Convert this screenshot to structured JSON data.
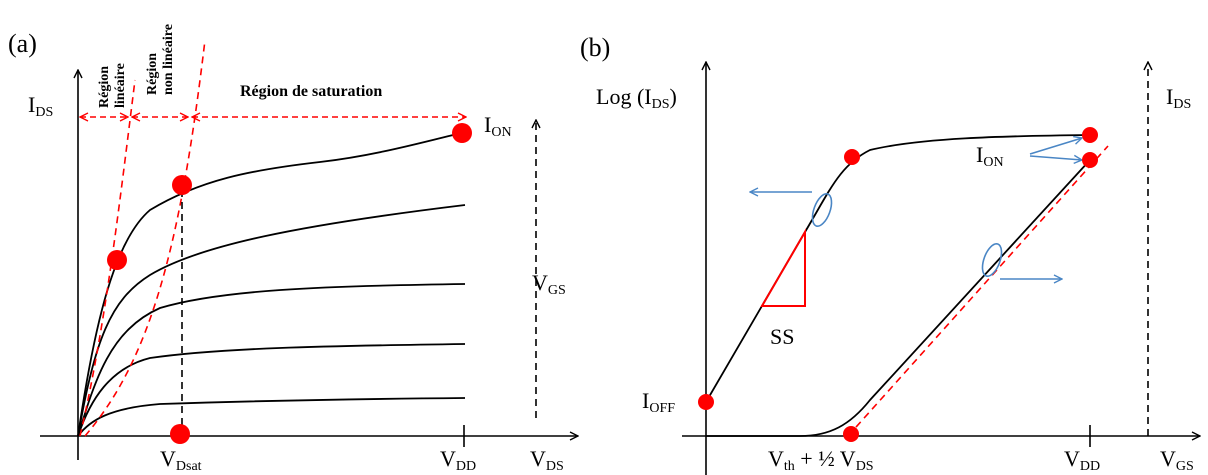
{
  "colors": {
    "curve": "#000000",
    "accent_red": "#ff0000",
    "arrow_blue": "#4a86c5"
  },
  "left_panel": {
    "label": "(a)",
    "y_axis": {
      "main": "I",
      "sub": "DS"
    },
    "x_axis": {
      "main": "V",
      "sub": "DS"
    },
    "vgs_label": {
      "main": "V",
      "sub": "GS"
    },
    "ion_label": {
      "main": "I",
      "sub": "ON"
    },
    "vdsat_label": {
      "main": "V",
      "sub": "Dsat"
    },
    "vdd_label": {
      "main": "V",
      "sub": "DD"
    },
    "regions": {
      "linear_line1": "Région",
      "linear_line2": "linéaire",
      "nonlinear_line1": "Région",
      "nonlinear_line2": "non linéaire",
      "saturation": "Région de saturation"
    }
  },
  "right_panel": {
    "label": "(b)",
    "y_axis_left": {
      "prefix": "Log (I",
      "sub": "DS",
      "suffix": ")"
    },
    "y_axis_right": {
      "main": "I",
      "sub": "DS"
    },
    "x_axis": {
      "main": "V",
      "sub": "GS"
    },
    "ioff_label": {
      "main": "I",
      "sub": "OFF"
    },
    "ion_label": {
      "main": "I",
      "sub": "ON"
    },
    "ss_label": "SS",
    "vth_label": {
      "main": "V",
      "sub1": "th",
      "mid": " + ½ V",
      "sub2": "DS"
    },
    "vdd_label": {
      "main": "V",
      "sub": "DD"
    }
  }
}
